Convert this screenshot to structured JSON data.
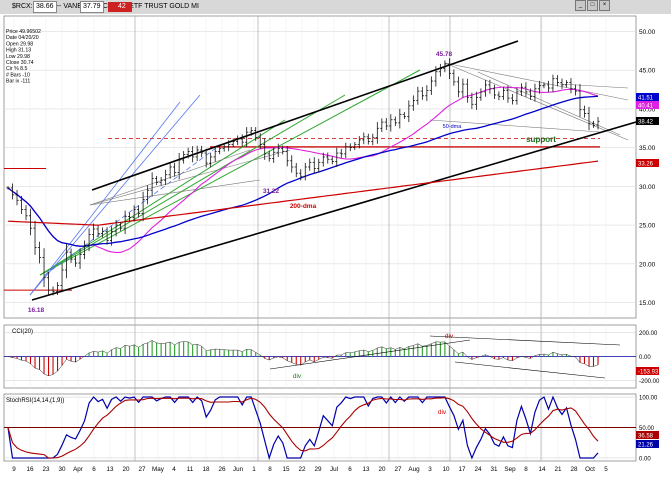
{
  "header": {
    "symbol": "$RCX:GDX,D -- VANECK VECTORS ETF TRUST GOLD MI",
    "box1": "38.66",
    "box2": "37.79",
    "box3": "42"
  },
  "info_panel": [
    "Price  49.96502",
    "Date   04/20/20",
    "Open   29.98",
    "High   31.13",
    "Low    29.98",
    "Close  30.74",
    "Cir % 8.5",
    "# Bars -10",
    "Bar ix -111"
  ],
  "colors": {
    "price_bars": "#111111",
    "ma50": "#0000cc",
    "ma20": "#e020e0",
    "ma200": "#cc0000",
    "channel": "#000000",
    "fan_green": "#2fa82f",
    "fan_blue": "#5577ee",
    "cci_pos": "#2a9a2a",
    "cci_neg": "#cc0000",
    "stoch": "#0000aa",
    "stoch_signal": "#aa0000"
  },
  "chart_data": [
    {
      "type": "bar",
      "panel": "price",
      "ylim": [
        13,
        52
      ],
      "yticks": [
        15.0,
        20.0,
        25.0,
        30.0,
        35.0,
        40.0,
        45.0,
        50.0
      ],
      "x_tick_labels": [
        "9",
        "16",
        "23",
        "30",
        "Apr",
        "6",
        "13",
        "20",
        "27",
        "May",
        "4",
        "11",
        "18",
        "26",
        "Jun",
        "1",
        "8",
        "15",
        "22",
        "29",
        "Jul",
        "6",
        "13",
        "20",
        "27",
        "Aug",
        "3",
        "10",
        "17",
        "24",
        "31",
        "Sep",
        "8",
        "14",
        "21",
        "28",
        "Oct",
        "5"
      ],
      "closes": [
        29.8,
        28.9,
        28.2,
        27.0,
        26.2,
        24.6,
        22.1,
        20.8,
        18.2,
        16.6,
        16.4,
        17.2,
        19.2,
        21.5,
        20.6,
        20.1,
        21.2,
        22.4,
        23.8,
        24.5,
        23.9,
        24.2,
        23.0,
        24.2,
        25.0,
        24.6,
        26.1,
        26.0,
        27.0,
        26.5,
        28.3,
        29.5,
        31.0,
        30.5,
        30.8,
        31.5,
        32.5,
        31.8,
        33.4,
        34.1,
        34.5,
        33.8,
        34.7,
        34.3,
        33.0,
        33.8,
        34.5,
        34.9,
        35.1,
        35.4,
        35.8,
        36.1,
        35.7,
        37.0,
        37.2,
        36.3,
        35.4,
        34.2,
        33.6,
        34.4,
        34.9,
        34.5,
        33.3,
        32.5,
        31.7,
        31.3,
        32.5,
        33.1,
        32.3,
        33.1,
        33.8,
        33.5,
        33.2,
        34.3,
        34.2,
        35.1,
        35.0,
        35.4,
        36.0,
        36.4,
        35.8,
        36.3,
        37.5,
        38.3,
        37.8,
        38.6,
        38.2,
        39.3,
        39.0,
        40.4,
        41.1,
        42.3,
        41.7,
        42.4,
        43.6,
        44.8,
        45.2,
        45.8,
        44.6,
        43.5,
        42.2,
        43.2,
        41.5,
        40.6,
        41.5,
        42.2,
        43.1,
        42.6,
        41.8,
        41.6,
        42.4,
        41.4,
        41.1,
        42.2,
        42.8,
        42.2,
        41.6,
        42.6,
        43.0,
        43.1,
        42.7,
        43.9,
        43.4,
        43.1,
        43.4,
        42.6,
        42.3,
        39.9,
        39.4,
        38.1,
        37.9,
        38.4
      ],
      "series": [
        {
          "name": "50-dma"
        },
        {
          "name": "200-dma"
        }
      ],
      "annotations": [
        "45.78",
        "31.22",
        "16.18",
        "support",
        "200-dma",
        "50-dma"
      ],
      "right_labels": [
        {
          "text": "41.51",
          "value": 41.51,
          "color": "#0000cc"
        },
        {
          "text": "40.41",
          "value": 40.41,
          "color": "#e020e0"
        },
        {
          "text": "38.42",
          "value": 38.42,
          "color": "#000000"
        },
        {
          "text": "33.26",
          "value": 33.26,
          "color": "#cc0000"
        }
      ]
    },
    {
      "type": "bar",
      "panel": "cci",
      "title": "CCI(20)",
      "ylim": [
        -260,
        260
      ],
      "yticks": [
        {
          "text": "200.00",
          "value": 200
        },
        {
          "text": "0.00",
          "value": 0
        },
        {
          "text": "-200.00",
          "value": -200
        }
      ],
      "annotations": [
        "div",
        "div"
      ],
      "right_labels": [
        {
          "text": "-153.93",
          "value": -153.93,
          "color": "#cc0000"
        }
      ]
    },
    {
      "type": "line",
      "panel": "stoch",
      "title": "StochRSI(14,14,(1,9))",
      "ylim": [
        -5,
        105
      ],
      "yticks": [
        {
          "text": "100.00",
          "value": 100
        },
        {
          "text": "50.00",
          "value": 50
        },
        {
          "text": "0.00",
          "value": 0
        }
      ],
      "annotations": [
        "div"
      ],
      "right_labels": [
        {
          "text": "36.58",
          "value": 36.58,
          "color": "#aa0000"
        },
        {
          "text": "21.26",
          "value": 21.26,
          "color": "#0000aa"
        }
      ]
    }
  ]
}
